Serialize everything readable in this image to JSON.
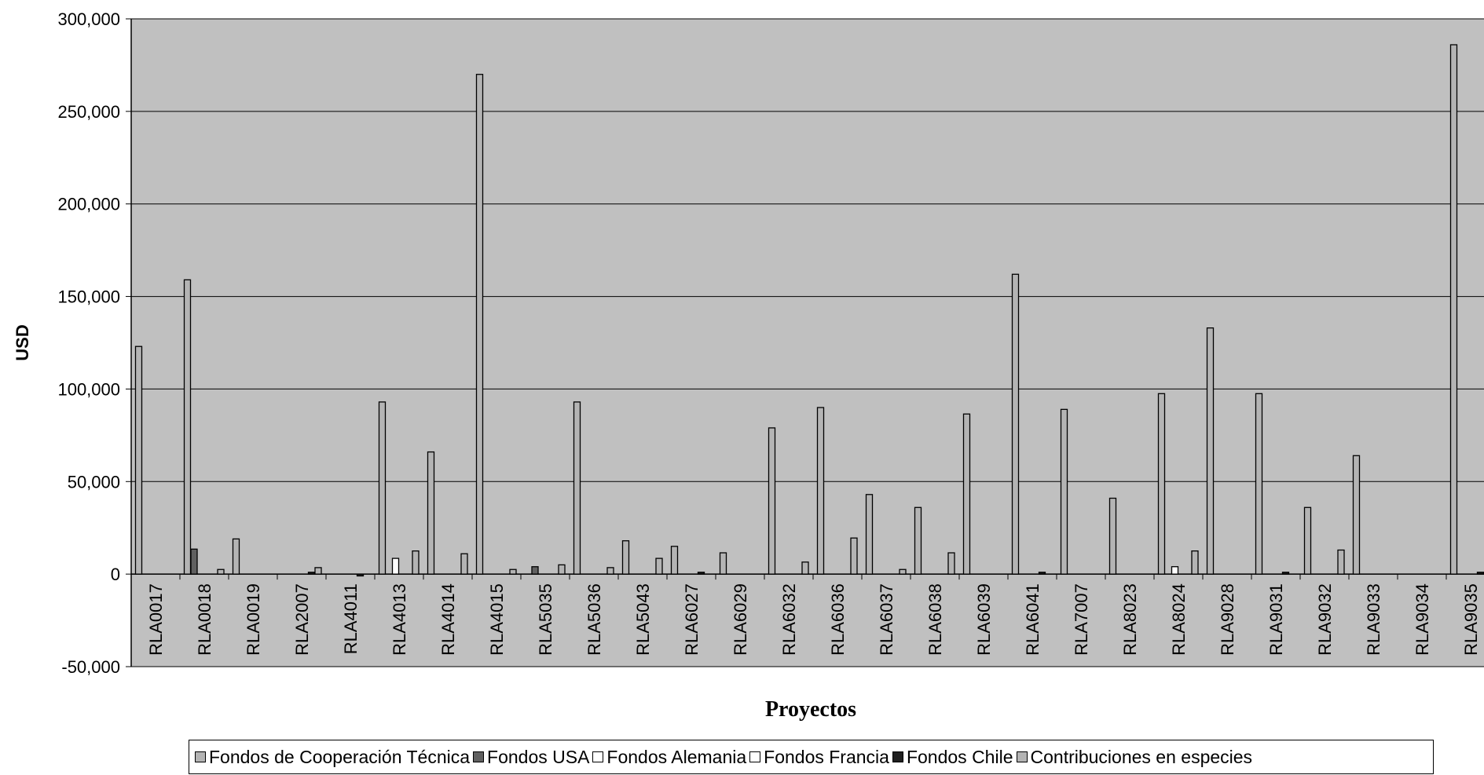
{
  "chart_data": {
    "type": "bar",
    "ylabel": "USD",
    "xlabel": "Proyectos",
    "ylim": [
      -50000,
      300000
    ],
    "yticks": [
      {
        "value": -50000,
        "label": "-50,000"
      },
      {
        "value": 0,
        "label": "0"
      },
      {
        "value": 50000,
        "label": "50,000"
      },
      {
        "value": 100000,
        "label": "100,000"
      },
      {
        "value": 150000,
        "label": "150,000"
      },
      {
        "value": 200000,
        "label": "200,000"
      },
      {
        "value": 250000,
        "label": "250,000"
      },
      {
        "value": 300000,
        "label": "300,000"
      }
    ],
    "grid": true,
    "legend_position": "bottom",
    "plot_background": "#C0C0C0",
    "categories": [
      "RLA0017",
      "RLA0018",
      "RLA0019",
      "RLA2007",
      "RLA4011",
      "RLA4013",
      "RLA4014",
      "RLA4015",
      "RLA5035",
      "RLA5036",
      "RLA5043",
      "RLA6027",
      "RLA6029",
      "RLA6032",
      "RLA6036",
      "RLA6037",
      "RLA6038",
      "RLA6039",
      "RLA6041",
      "RLA7007",
      "RLA8023",
      "RLA8024",
      "RLA9028",
      "RLA9031",
      "RLA9032",
      "RLA9033",
      "RLA9034",
      "RLA9035"
    ],
    "series": [
      {
        "name": "Fondos de Cooperación Técnica",
        "color": "#B4B4B4",
        "values": [
          123000,
          159000,
          19000,
          0,
          0,
          93000,
          66000,
          270000,
          0,
          93000,
          18000,
          15000,
          11500,
          79000,
          90000,
          43000,
          36000,
          86500,
          162000,
          89000,
          41000,
          97500,
          133000,
          97500,
          36000,
          64000,
          0,
          286000
        ]
      },
      {
        "name": "Fondos USA",
        "color": "#606060",
        "values": [
          0,
          13500,
          0,
          0,
          0,
          0,
          0,
          0,
          4000,
          0,
          0,
          0,
          0,
          0,
          0,
          0,
          0,
          0,
          0,
          0,
          0,
          0,
          0,
          0,
          0,
          0,
          0,
          0
        ]
      },
      {
        "name": "Fondos Alemania",
        "color": "#FFFFFF",
        "values": [
          0,
          0,
          0,
          0,
          0,
          8500,
          0,
          0,
          0,
          0,
          0,
          0,
          0,
          0,
          0,
          0,
          0,
          0,
          0,
          0,
          0,
          4000,
          0,
          0,
          0,
          0,
          0,
          0
        ]
      },
      {
        "name": "Fondos Francia",
        "color": "#FFFFFF",
        "values": [
          0,
          0,
          0,
          0,
          0,
          0,
          0,
          0,
          0,
          0,
          0,
          0,
          0,
          0,
          0,
          0,
          0,
          0,
          0,
          0,
          0,
          0,
          0,
          0,
          0,
          0,
          0,
          0
        ]
      },
      {
        "name": "Fondos Chile",
        "color": "#202020",
        "values": [
          0,
          0,
          0,
          1000,
          -1000,
          0,
          0,
          0,
          0,
          0,
          0,
          1000,
          0,
          0,
          0,
          0,
          0,
          0,
          1000,
          0,
          0,
          0,
          0,
          1000,
          0,
          0,
          0,
          1000
        ]
      },
      {
        "name": "Contribuciones en especies",
        "color": "#B4B4B4",
        "values": [
          0,
          2500,
          0,
          3500,
          0,
          12500,
          11000,
          2500,
          5000,
          3500,
          8500,
          0,
          0,
          6500,
          19500,
          2500,
          11500,
          0,
          0,
          0,
          0,
          12500,
          0,
          0,
          13000,
          0,
          0,
          0
        ]
      }
    ]
  }
}
